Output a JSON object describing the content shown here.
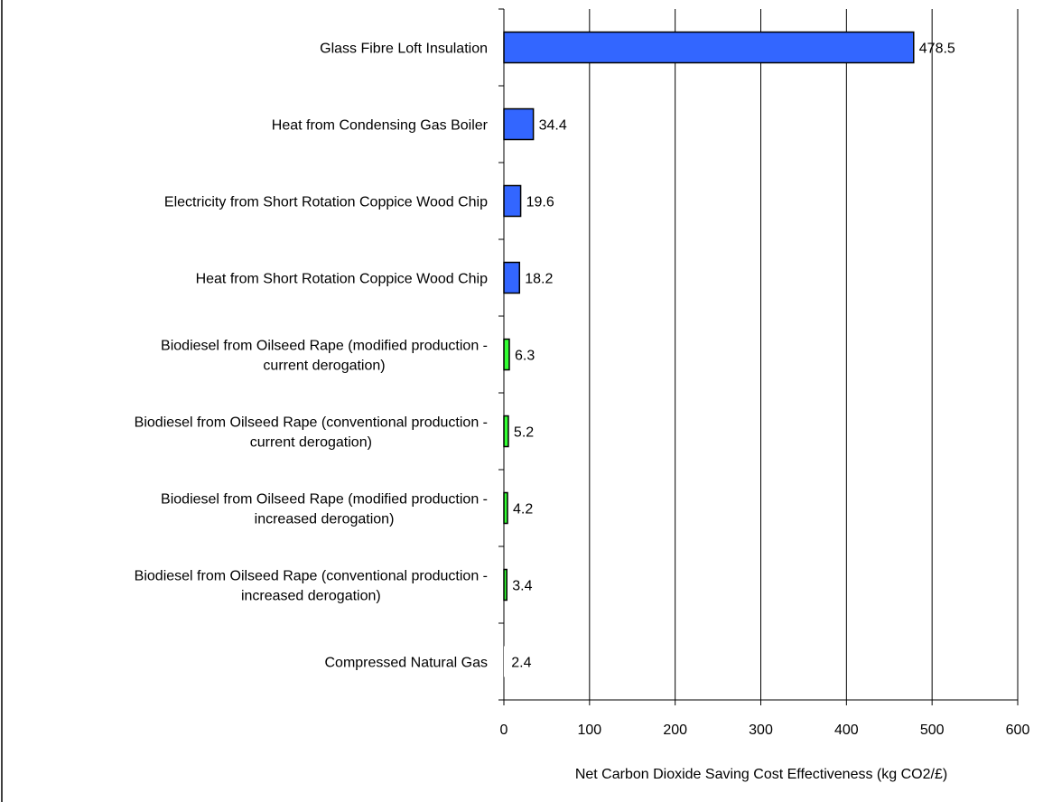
{
  "chart_data": {
    "type": "bar",
    "orientation": "horizontal",
    "title": "",
    "xlabel": "Net Carbon Dioxide Saving Cost Effectiveness (kg CO2/£)",
    "ylabel": "",
    "xlim": [
      0,
      600
    ],
    "xticks": [
      "0",
      "100",
      "200",
      "300",
      "400",
      "500",
      "600"
    ],
    "grid": "vertical",
    "legend": "none",
    "categories": [
      [
        "Glass Fibre Loft Insulation"
      ],
      [
        "Heat from Condensing Gas Boiler"
      ],
      [
        "Electricity from Short Rotation Coppice Wood Chip"
      ],
      [
        "Heat from Short Rotation Coppice Wood Chip"
      ],
      [
        "Biodiesel from Oilseed Rape (modified production -",
        "current derogation)"
      ],
      [
        "Biodiesel from Oilseed Rape (conventional production -",
        "current derogation)"
      ],
      [
        "Biodiesel from Oilseed Rape (modified production -",
        "increased derogation)"
      ],
      [
        "Biodiesel from Oilseed Rape (conventional production -",
        "increased derogation)"
      ],
      [
        "Compressed Natural Gas"
      ]
    ],
    "values": [
      478.5,
      34.4,
      19.6,
      18.2,
      6.3,
      5.2,
      4.2,
      3.4,
      2.4
    ],
    "value_labels": [
      "478.5",
      "34.4",
      "19.6",
      "18.2",
      "6.3",
      "5.2",
      "4.2",
      "3.4",
      "2.4"
    ],
    "bar_colors": [
      "#3366ff",
      "#3366ff",
      "#3366ff",
      "#3366ff",
      "#33ff33",
      "#33ff33",
      "#33ff33",
      "#33ff33",
      "#ffffff"
    ],
    "bar_outline_color": "#000000",
    "grid_color": "#000000"
  }
}
